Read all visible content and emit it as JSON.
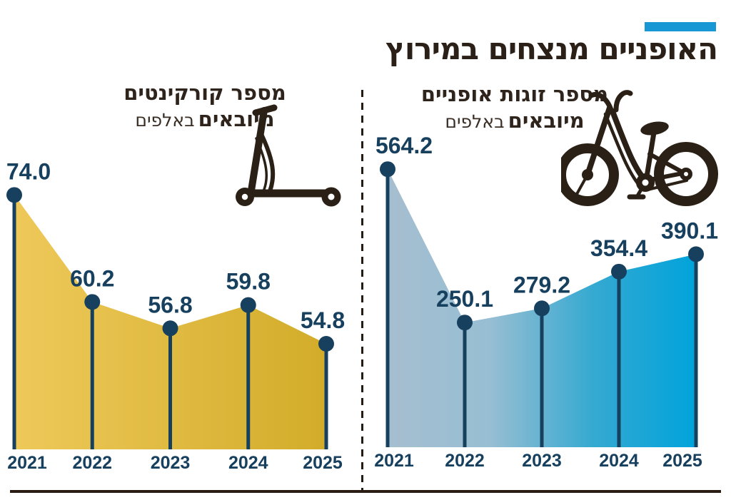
{
  "title": "האופניים מנצחים במירוץ",
  "accent_bar_color": "#1798d5",
  "title_color": "#2b2017",
  "label_color": "#17405f",
  "divider_color": "#241b12",
  "chart_data": [
    {
      "type": "area",
      "id": "scooters",
      "title_line1": "מספר קורקינטים",
      "title_line2_bold": "מיובאים",
      "title_line2_light": "באלפים",
      "icon": "scooter-icon",
      "categories": [
        "2021",
        "2022",
        "2023",
        "2024",
        "2025"
      ],
      "values": [
        74.0,
        60.2,
        56.8,
        59.8,
        54.8
      ],
      "value_labels": [
        "74.0",
        "60.2",
        "56.8",
        "59.8",
        "54.8"
      ],
      "gradient": [
        "#eec95a",
        "#d2ac29"
      ],
      "point_color": "#17405f",
      "ylim": [
        50,
        78
      ],
      "grid": false,
      "legend": false
    },
    {
      "type": "area",
      "id": "bicycles",
      "title_line1": "מספר זוגות אופניים",
      "title_line2_bold": "מיובאים",
      "title_line2_light": "באלפים",
      "icon": "bicycle-icon",
      "categories": [
        "2021",
        "2022",
        "2023",
        "2024",
        "2025"
      ],
      "values": [
        564.2,
        250.1,
        279.2,
        354.4,
        390.1
      ],
      "value_labels": [
        "564.2",
        "250.1",
        "279.2",
        "354.4",
        "390.1"
      ],
      "gradient": [
        "#a6bed0",
        "#97bed3",
        "#35a9d1",
        "#00a3dc"
      ],
      "point_color": "#17405f",
      "ylim": [
        0,
        600
      ],
      "grid": false,
      "legend": false
    }
  ]
}
